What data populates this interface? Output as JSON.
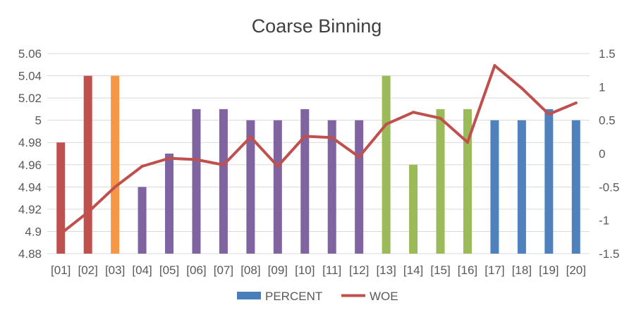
{
  "chart_data": {
    "type": "bar+line",
    "title": "Coarse Binning",
    "categories": [
      "[01]",
      "[02]",
      "[03]",
      "[04]",
      "[05]",
      "[06]",
      "[07]",
      "[08]",
      "[09]",
      "[10]",
      "[11]",
      "[12]",
      "[13]",
      "[14]",
      "[15]",
      "[16]",
      "[17]",
      "[18]",
      "[19]",
      "[20]"
    ],
    "bar_series": {
      "name": "PERCENT",
      "legend_color": "#4a7ebb",
      "values": [
        4.98,
        5.04,
        5.04,
        4.94,
        4.97,
        5.01,
        5.01,
        5.0,
        5.0,
        5.01,
        5.0,
        5.0,
        5.04,
        4.96,
        5.01,
        5.01,
        5.0,
        5.0,
        5.01,
        5.0
      ],
      "colors": [
        "#c0504d",
        "#c0504d",
        "#f79646",
        "#8064a2",
        "#8064a2",
        "#8064a2",
        "#8064a2",
        "#8064a2",
        "#8064a2",
        "#8064a2",
        "#8064a2",
        "#8064a2",
        "#9bbb59",
        "#9bbb59",
        "#9bbb59",
        "#9bbb59",
        "#4f81bd",
        "#4f81bd",
        "#4f81bd",
        "#4f81bd"
      ]
    },
    "line_series": {
      "name": "WOE",
      "color": "#c0504d",
      "values": [
        -1.2,
        -0.88,
        -0.5,
        -0.19,
        -0.07,
        -0.09,
        -0.17,
        0.25,
        -0.19,
        0.26,
        0.24,
        -0.05,
        0.44,
        0.62,
        0.53,
        0.17,
        1.32,
        0.98,
        0.59,
        0.76
      ]
    },
    "y_left": {
      "min": 4.88,
      "max": 5.06,
      "ticks": [
        "4.88",
        "4.9",
        "4.92",
        "4.94",
        "4.96",
        "4.98",
        "5",
        "5.02",
        "5.04",
        "5.06"
      ]
    },
    "y_right": {
      "min": -1.5,
      "max": 1.5,
      "ticks": [
        "-1.5",
        "-1",
        "-0.5",
        "0",
        "0.5",
        "1",
        "1.5"
      ]
    },
    "grid": true,
    "legend_position": "bottom"
  }
}
